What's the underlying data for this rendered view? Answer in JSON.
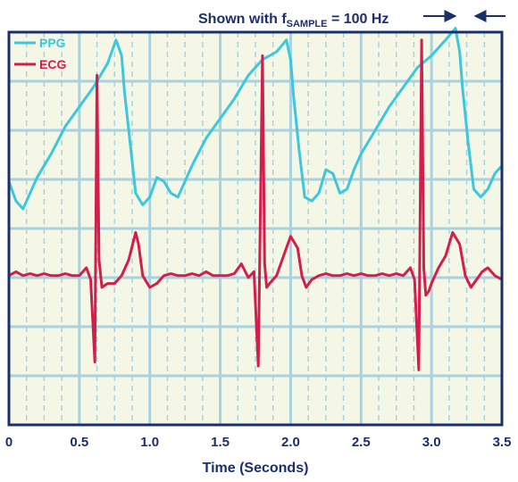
{
  "chart_data": {
    "type": "line",
    "xlabel": "Time (Seconds)",
    "ylabel": "",
    "xlim": [
      0,
      3.5
    ],
    "ylim": [
      0,
      10
    ],
    "x_ticks": [
      "0",
      "0.5",
      "1.0",
      "1.5",
      "2.0",
      "2.5",
      "3.0",
      "3.5"
    ],
    "grid": true,
    "legend_position": "top-left",
    "annotation": {
      "prefix": "Shown with f",
      "subscript": "SAMPLE",
      "suffix": " = 100 Hz"
    },
    "colors": {
      "background": "#f4f6e6",
      "grid": "#a9d2e0",
      "frame": "#1a2f6e",
      "text": "#1a2f6e"
    },
    "series": [
      {
        "name": "PPG",
        "color": "#3cc7dc",
        "x": [
          0,
          0.05,
          0.1,
          0.15,
          0.2,
          0.3,
          0.4,
          0.5,
          0.6,
          0.7,
          0.76,
          0.8,
          0.82,
          0.86,
          0.9,
          0.95,
          1.0,
          1.05,
          1.1,
          1.15,
          1.2,
          1.25,
          1.3,
          1.4,
          1.5,
          1.6,
          1.7,
          1.8,
          1.9,
          1.97,
          2.0,
          2.02,
          2.06,
          2.1,
          2.15,
          2.2,
          2.25,
          2.3,
          2.35,
          2.4,
          2.45,
          2.5,
          2.6,
          2.7,
          2.8,
          2.9,
          3.0,
          3.1,
          3.17,
          3.2,
          3.22,
          3.26,
          3.3,
          3.35,
          3.4,
          3.45,
          3.5
        ],
        "y": [
          6.2,
          5.7,
          5.5,
          5.9,
          6.3,
          6.9,
          7.6,
          8.1,
          8.6,
          9.2,
          9.8,
          9.4,
          8.5,
          7.2,
          5.9,
          5.6,
          5.8,
          6.3,
          6.2,
          5.9,
          5.8,
          6.2,
          6.6,
          7.3,
          7.8,
          8.3,
          8.9,
          9.3,
          9.5,
          9.8,
          9.3,
          8.4,
          7.0,
          5.8,
          5.7,
          5.9,
          6.5,
          6.4,
          5.9,
          6.0,
          6.5,
          6.9,
          7.5,
          8.1,
          8.6,
          9.1,
          9.4,
          9.8,
          10.1,
          9.5,
          8.6,
          7.2,
          6.0,
          5.8,
          6.0,
          6.4,
          6.6
        ]
      },
      {
        "name": "ECG",
        "color": "#d21e4b",
        "x": [
          0,
          0.05,
          0.1,
          0.15,
          0.2,
          0.25,
          0.3,
          0.35,
          0.4,
          0.45,
          0.5,
          0.55,
          0.58,
          0.61,
          0.625,
          0.64,
          0.66,
          0.7,
          0.75,
          0.8,
          0.85,
          0.9,
          0.92,
          0.95,
          1.0,
          1.05,
          1.1,
          1.15,
          1.2,
          1.25,
          1.3,
          1.35,
          1.4,
          1.45,
          1.5,
          1.55,
          1.6,
          1.65,
          1.7,
          1.74,
          1.77,
          1.8,
          1.815,
          1.83,
          1.85,
          1.9,
          1.95,
          2.0,
          2.05,
          2.08,
          2.11,
          2.15,
          2.2,
          2.25,
          2.3,
          2.35,
          2.4,
          2.45,
          2.5,
          2.55,
          2.6,
          2.65,
          2.7,
          2.75,
          2.8,
          2.85,
          2.88,
          2.91,
          2.93,
          2.945,
          2.96,
          2.98,
          3.0,
          3.05,
          3.1,
          3.15,
          3.2,
          3.24,
          3.28,
          3.32,
          3.36,
          3.4,
          3.45,
          3.5
        ],
        "y": [
          3.8,
          3.9,
          3.8,
          3.85,
          3.8,
          3.85,
          3.8,
          3.8,
          3.85,
          3.8,
          3.8,
          4.0,
          3.7,
          1.6,
          8.9,
          4.2,
          3.5,
          3.6,
          3.6,
          3.8,
          4.2,
          4.9,
          4.6,
          3.8,
          3.5,
          3.6,
          3.8,
          3.85,
          3.8,
          3.8,
          3.85,
          3.8,
          3.9,
          3.8,
          3.8,
          3.8,
          3.85,
          4.1,
          3.75,
          3.9,
          1.5,
          9.4,
          4.1,
          3.5,
          3.6,
          3.8,
          4.3,
          4.8,
          4.5,
          3.8,
          3.5,
          3.7,
          3.8,
          3.85,
          3.8,
          3.8,
          3.85,
          3.8,
          3.85,
          3.8,
          3.8,
          3.85,
          3.8,
          3.85,
          3.8,
          4.0,
          3.7,
          1.4,
          9.8,
          4.0,
          3.3,
          3.4,
          3.6,
          4.0,
          4.3,
          4.9,
          4.6,
          3.8,
          3.5,
          3.7,
          3.9,
          4.0,
          3.8,
          3.7
        ]
      }
    ]
  }
}
